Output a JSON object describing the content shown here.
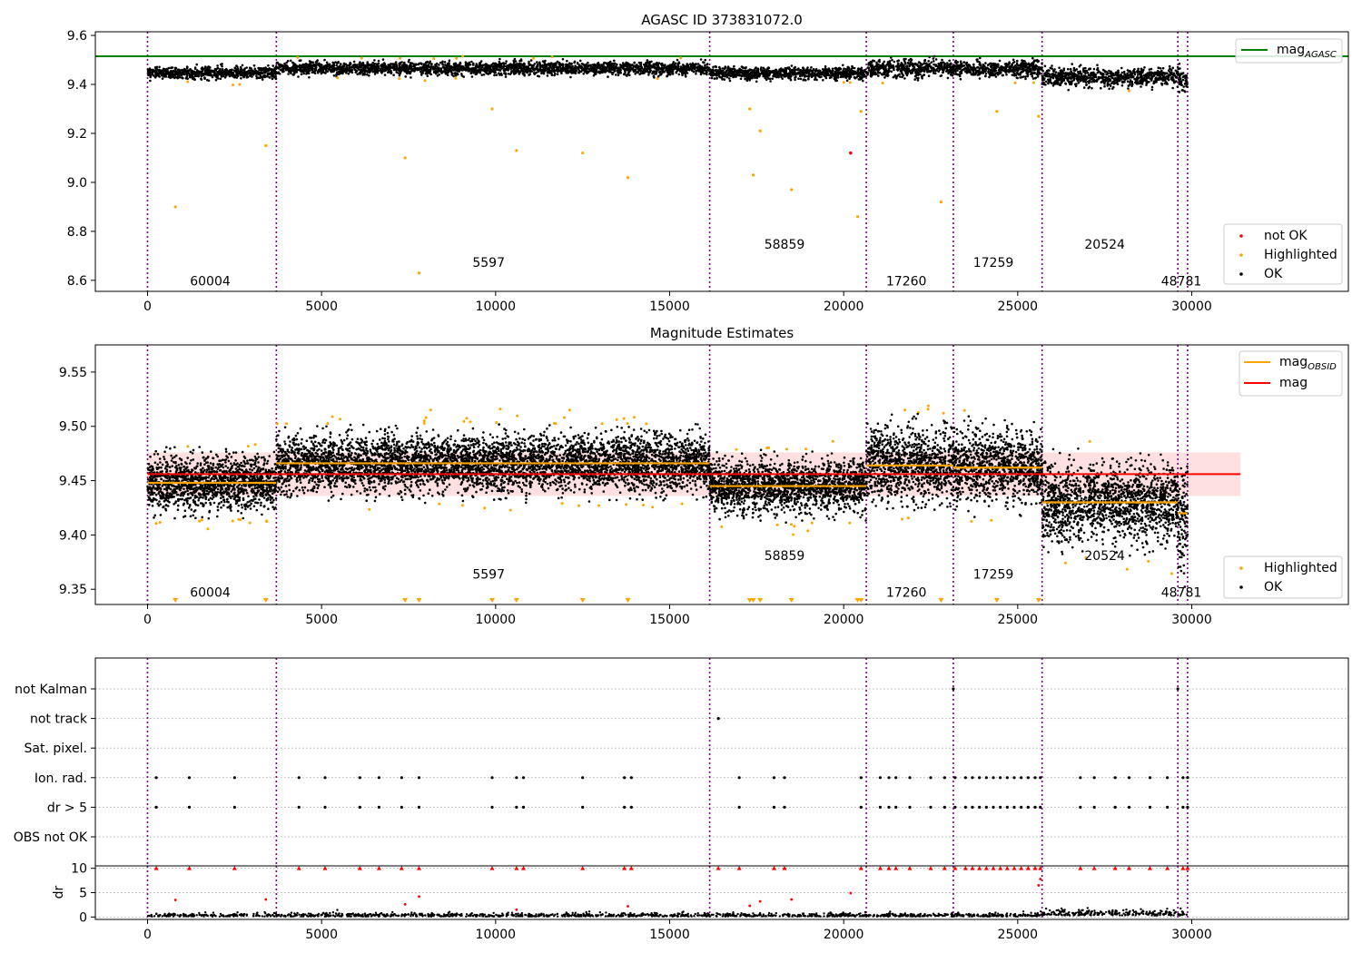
{
  "chart_data": [
    {
      "type": "scatter",
      "title": "AGASC ID 373831072.0",
      "xlim": [
        -1500,
        34500
      ],
      "ylim": [
        8.555,
        9.615
      ],
      "x_ticks": [
        0,
        5000,
        10000,
        15000,
        20000,
        25000,
        30000
      ],
      "y_ticks": [
        8.6,
        8.8,
        9.0,
        9.2,
        9.4,
        9.6
      ],
      "obs_boundaries": [
        0,
        3700,
        16150,
        20650,
        23150,
        25700,
        29600,
        29880
      ],
      "mag_agasc": 9.515,
      "series": [
        {
          "name": "mag$_{AGASC}$",
          "color": "#008000",
          "kind": "hline"
        },
        {
          "name": "not OK",
          "color": "#ff0000",
          "kind": "points"
        },
        {
          "name": "Highlighted",
          "color": "#ffa500",
          "kind": "points"
        },
        {
          "name": "OK",
          "color": "#000000",
          "kind": "points"
        }
      ],
      "segments": [
        {
          "x0": 0,
          "x1": 3700,
          "mean": 9.448,
          "sd": 0.012
        },
        {
          "x0": 3700,
          "x1": 16150,
          "mean": 9.466,
          "sd": 0.013
        },
        {
          "x0": 16150,
          "x1": 20650,
          "mean": 9.445,
          "sd": 0.012
        },
        {
          "x0": 20650,
          "x1": 23150,
          "mean": 9.464,
          "sd": 0.017
        },
        {
          "x0": 23150,
          "x1": 25700,
          "mean": 9.462,
          "sd": 0.017
        },
        {
          "x0": 25700,
          "x1": 29600,
          "mean": 9.43,
          "sd": 0.018
        },
        {
          "x0": 29600,
          "x1": 29880,
          "mean": 9.42,
          "sd": 0.025
        }
      ],
      "outliers": [
        {
          "x": 800,
          "y": 8.9
        },
        {
          "x": 7400,
          "y": 9.1
        },
        {
          "x": 7800,
          "y": 8.63
        },
        {
          "x": 3400,
          "y": 9.15
        },
        {
          "x": 9900,
          "y": 9.3
        },
        {
          "x": 10600,
          "y": 9.13
        },
        {
          "x": 12500,
          "y": 9.12
        },
        {
          "x": 13800,
          "y": 9.02
        },
        {
          "x": 17300,
          "y": 9.3
        },
        {
          "x": 17400,
          "y": 9.03
        },
        {
          "x": 17600,
          "y": 9.21
        },
        {
          "x": 18500,
          "y": 8.97
        },
        {
          "x": 20400,
          "y": 8.86
        },
        {
          "x": 20500,
          "y": 9.29
        },
        {
          "x": 22800,
          "y": 8.92
        },
        {
          "x": 24400,
          "y": 9.29
        },
        {
          "x": 25600,
          "y": 9.27
        }
      ],
      "not_ok_points": [
        {
          "x": 20200,
          "y": 9.12
        }
      ],
      "obsid_labels": [
        {
          "text": "60004",
          "x": 1800,
          "y": 8.58
        },
        {
          "text": "5597",
          "x": 9800,
          "y": 8.655
        },
        {
          "text": "58859",
          "x": 18300,
          "y": 8.73
        },
        {
          "text": "17260",
          "x": 21800,
          "y": 8.58
        },
        {
          "text": "17259",
          "x": 24300,
          "y": 8.655
        },
        {
          "text": "20524",
          "x": 27500,
          "y": 8.73
        },
        {
          "text": "48781",
          "x": 29700,
          "y": 8.58
        }
      ],
      "legend_top": "top-right",
      "legend_bottom": "bottom-right"
    },
    {
      "type": "scatter",
      "title": "Magnitude Estimates",
      "xlim": [
        -1500,
        34500
      ],
      "ylim": [
        9.336,
        9.575
      ],
      "x_ticks": [
        0,
        5000,
        10000,
        15000,
        20000,
        25000,
        30000
      ],
      "y_ticks": [
        9.35,
        9.4,
        9.45,
        9.5,
        9.55
      ],
      "mag": 9.456,
      "mag_band": [
        9.436,
        9.476
      ],
      "series": [
        {
          "name": "mag$_{OBSID}$",
          "color": "#ffa500",
          "kind": "step"
        },
        {
          "name": "mag",
          "color": "#ff0000",
          "kind": "hline"
        },
        {
          "name": "Highlighted",
          "color": "#ffa500",
          "kind": "points"
        },
        {
          "name": "OK",
          "color": "#000000",
          "kind": "points"
        }
      ],
      "obsid_labels": [
        {
          "text": "60004",
          "x": 1800,
          "y": 9.343
        },
        {
          "text": "5597",
          "x": 9800,
          "y": 9.36
        },
        {
          "text": "58859",
          "x": 18300,
          "y": 9.377
        },
        {
          "text": "17260",
          "x": 21800,
          "y": 9.343
        },
        {
          "text": "17259",
          "x": 24300,
          "y": 9.36
        },
        {
          "text": "20524",
          "x": 27500,
          "y": 9.377
        },
        {
          "text": "48781",
          "x": 29700,
          "y": 9.343
        }
      ],
      "legend_top": "top-right",
      "legend_bottom": "bottom-right"
    },
    {
      "type": "scatter",
      "xlim": [
        -1500,
        34500
      ],
      "categories": [
        "not Kalman",
        "not track",
        "Sat. pixel.",
        "Ion. rad.",
        "dr > 5",
        "OBS not OK"
      ],
      "flags": {
        "not Kalman": [
          23150,
          29600
        ],
        "not track": [
          16400
        ],
        "Sat. pixel.": [],
        "Ion. rad.": [
          250,
          1200,
          2500,
          4350,
          5100,
          6100,
          6650,
          7300,
          7800,
          9900,
          10600,
          10800,
          12500,
          13700,
          13900,
          17000,
          18000,
          18300,
          20500,
          21050,
          21300,
          21500,
          21900,
          22500,
          22900,
          23200,
          23500,
          23700,
          23900,
          24100,
          24300,
          24500,
          24700,
          24900,
          25100,
          25300,
          25500,
          25650,
          26800,
          27200,
          27800,
          28200,
          28800,
          29300,
          29750,
          29880
        ],
        "dr > 5": [
          250,
          1200,
          2500,
          4350,
          5100,
          6100,
          6650,
          7300,
          7800,
          9900,
          10600,
          10800,
          12500,
          13700,
          13900,
          17000,
          18000,
          18300,
          20500,
          21050,
          21300,
          21500,
          21900,
          22500,
          22900,
          23200,
          23500,
          23700,
          23900,
          24100,
          24300,
          24500,
          24700,
          24900,
          25100,
          25300,
          25500,
          25650,
          26800,
          27200,
          27800,
          28200,
          28800,
          29300,
          29750,
          29880
        ],
        "OBS not OK": []
      }
    },
    {
      "type": "scatter",
      "xlim": [
        -1500,
        34500
      ],
      "ylim": [
        -0.5,
        10.5
      ],
      "ylabel": "dr",
      "x_ticks": [
        0,
        5000,
        10000,
        15000,
        20000,
        25000,
        30000
      ],
      "y_ticks": [
        0,
        5,
        10
      ],
      "clipped_value": 10,
      "clipped_x": [
        250,
        1200,
        2500,
        4350,
        5100,
        6100,
        6650,
        7300,
        7800,
        9900,
        10600,
        10800,
        12500,
        13700,
        13900,
        16400,
        17000,
        18000,
        18300,
        20500,
        21050,
        21300,
        21500,
        21900,
        22500,
        22900,
        23200,
        23500,
        23700,
        23900,
        24100,
        24300,
        24500,
        24700,
        24900,
        25100,
        25300,
        25500,
        25650,
        26800,
        27200,
        27800,
        28200,
        28800,
        29300,
        29750,
        29880
      ],
      "mid_points": [
        {
          "x": 800,
          "y": 3.5
        },
        {
          "x": 3400,
          "y": 3.6
        },
        {
          "x": 7400,
          "y": 2.6
        },
        {
          "x": 7800,
          "y": 4.2
        },
        {
          "x": 10600,
          "y": 1.5
        },
        {
          "x": 13800,
          "y": 2.2
        },
        {
          "x": 17300,
          "y": 2.3
        },
        {
          "x": 17600,
          "y": 3.2
        },
        {
          "x": 18500,
          "y": 3.6
        },
        {
          "x": 20200,
          "y": 4.9
        },
        {
          "x": 25600,
          "y": 6.5
        },
        {
          "x": 25650,
          "y": 7.8
        }
      ]
    }
  ]
}
